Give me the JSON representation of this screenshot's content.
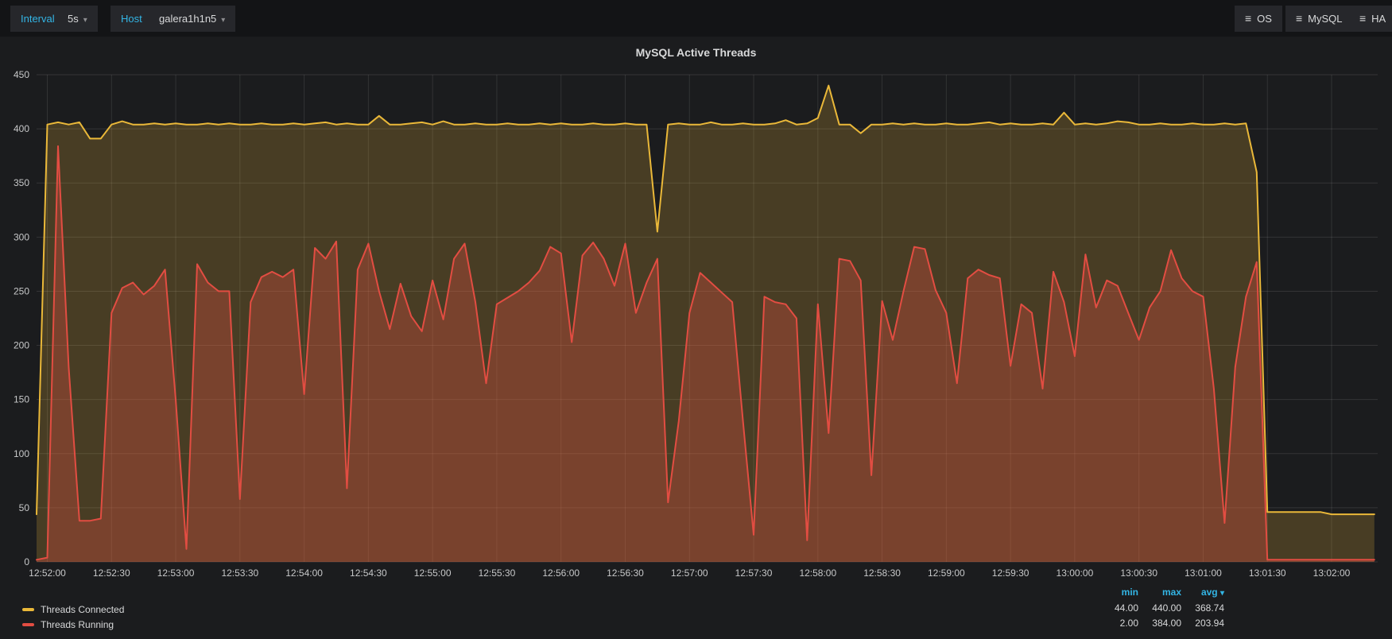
{
  "icons": {
    "caret_down": "▾",
    "menu": "≡"
  },
  "toolbar": {
    "interval_label": "Interval",
    "interval_value": "5s",
    "host_label": "Host",
    "host_value": "galera1h1n5",
    "nav_buttons": [
      {
        "label": "OS"
      },
      {
        "label": "MySQL"
      },
      {
        "label": "HA"
      }
    ]
  },
  "panel": {
    "title": "MySQL Active Threads"
  },
  "legend": {
    "columns": {
      "min": "min",
      "max": "max",
      "avg": "avg"
    },
    "sorted_by": "avg",
    "series": [
      {
        "label": "Threads Connected",
        "color": "#eab839",
        "min": "44.00",
        "max": "440.00",
        "avg": "368.74"
      },
      {
        "label": "Threads Running",
        "color": "#e24d42",
        "min": "2.00",
        "max": "384.00",
        "avg": "203.94"
      }
    ]
  },
  "chart_data": {
    "type": "area",
    "title": "MySQL Active Threads",
    "x_start": "12:51:55",
    "x_interval_seconds": 5,
    "ylim": [
      0,
      450
    ],
    "y_ticks": [
      0,
      50,
      100,
      150,
      200,
      250,
      300,
      350,
      400,
      450
    ],
    "grid": true,
    "legend_position": "bottom",
    "x_tick_labels": [
      "12:52:00",
      "12:52:30",
      "12:53:00",
      "12:53:30",
      "12:54:00",
      "12:54:30",
      "12:55:00",
      "12:55:30",
      "12:56:00",
      "12:56:30",
      "12:57:00",
      "12:57:30",
      "12:58:00",
      "12:58:30",
      "12:59:00",
      "12:59:30",
      "13:00:00",
      "13:00:30",
      "13:01:00",
      "13:01:30",
      "13:02:00"
    ],
    "series": [
      {
        "name": "Threads Connected",
        "color": "#eab839",
        "fill_opacity": 0.22,
        "values": [
          44,
          404,
          406,
          404,
          406,
          391,
          391,
          404,
          407,
          404,
          404,
          405,
          404,
          405,
          404,
          404,
          405,
          404,
          405,
          404,
          404,
          405,
          404,
          404,
          405,
          404,
          405,
          406,
          404,
          405,
          404,
          404,
          412,
          404,
          404,
          405,
          406,
          404,
          407,
          404,
          404,
          405,
          404,
          404,
          405,
          404,
          404,
          405,
          404,
          405,
          404,
          404,
          405,
          404,
          404,
          405,
          404,
          404,
          305,
          404,
          405,
          404,
          404,
          406,
          404,
          404,
          405,
          404,
          404,
          405,
          408,
          404,
          405,
          410,
          440,
          404,
          404,
          396,
          404,
          404,
          405,
          404,
          405,
          404,
          404,
          405,
          404,
          404,
          405,
          406,
          404,
          405,
          404,
          404,
          405,
          404,
          415,
          404,
          405,
          404,
          405,
          407,
          406,
          404,
          404,
          405,
          404,
          404,
          405,
          404,
          404,
          405,
          404,
          405,
          360,
          46,
          46,
          46,
          46,
          46,
          46,
          44,
          44,
          44,
          44,
          44
        ]
      },
      {
        "name": "Threads Running",
        "color": "#e24d42",
        "fill_opacity": 0.32,
        "values": [
          2,
          4,
          384,
          180,
          38,
          38,
          40,
          230,
          253,
          258,
          247,
          255,
          270,
          150,
          12,
          275,
          258,
          250,
          250,
          58,
          240,
          263,
          268,
          263,
          270,
          155,
          290,
          280,
          296,
          68,
          270,
          294,
          250,
          215,
          257,
          227,
          213,
          260,
          224,
          280,
          294,
          240,
          165,
          238,
          244,
          250,
          258,
          269,
          291,
          285,
          203,
          283,
          295,
          280,
          255,
          294,
          230,
          258,
          280,
          55,
          130,
          230,
          267,
          258,
          249,
          240,
          130,
          25,
          245,
          240,
          238,
          225,
          20,
          238,
          119,
          280,
          278,
          260,
          80,
          241,
          205,
          250,
          291,
          289,
          251,
          230,
          165,
          262,
          270,
          265,
          262,
          181,
          238,
          230,
          160,
          268,
          240,
          190,
          284,
          235,
          260,
          255,
          230,
          205,
          235,
          250,
          288,
          262,
          250,
          245,
          160,
          36,
          180,
          245,
          277,
          2,
          2,
          2,
          2,
          2,
          2,
          2,
          2,
          2,
          2,
          2
        ]
      }
    ]
  }
}
